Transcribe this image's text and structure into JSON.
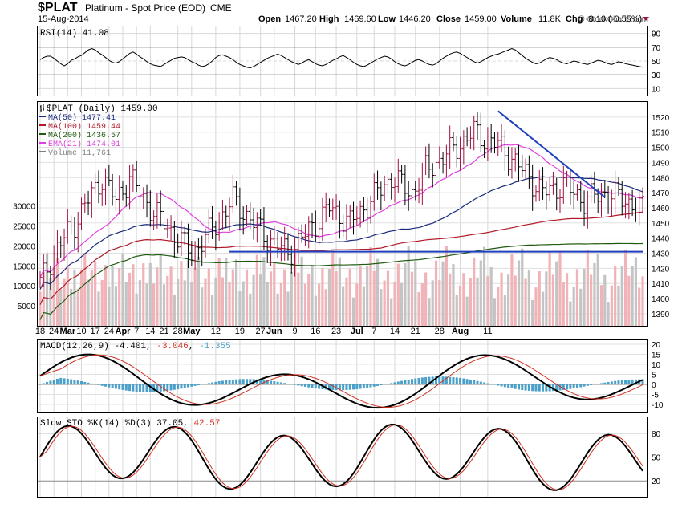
{
  "header": {
    "symbol": "$PLAT",
    "name": "Platinum",
    "desc": "- Spot Price (EOD)",
    "exchange": "CME",
    "date": "15-Aug-2014",
    "open_label": "Open",
    "open": "1467.20",
    "high_label": "High",
    "high": "1469.60",
    "low_label": "Low",
    "low": "1446.20",
    "close_label": "Close",
    "close": "1459.00",
    "volume_label": "Volume",
    "volume": "11.8K",
    "chg_label": "Chg",
    "chg": "-8.10 (-0.55%)",
    "watermark": "@ StockCharts.com"
  },
  "colors": {
    "up": "#a01040",
    "down": "#000000",
    "ma50": "#1a2a7c",
    "ma100": "#b01828",
    "ma200": "#1f5c12",
    "ema21": "#e040e0",
    "trend": "#1f3fbf",
    "vol_up": "#f0b4b8",
    "vol_down": "#c4c4c4",
    "macd_hist": "#4aa0c8",
    "signal": "#d03020"
  },
  "rsi": {
    "label": "RSI(14) 41.08",
    "ticks": [
      "90",
      "70",
      "50",
      "30",
      "10"
    ],
    "values": [
      52,
      55,
      57,
      57,
      54,
      50,
      46,
      43,
      46,
      51,
      53,
      56,
      58,
      62,
      66,
      68,
      66,
      62,
      59,
      55,
      51,
      48,
      47,
      49,
      53,
      57,
      61,
      63,
      60,
      56,
      53,
      49,
      46,
      44,
      43,
      42,
      45,
      48,
      51,
      54,
      55,
      56,
      55,
      52,
      49,
      47,
      44,
      42,
      43,
      46,
      50,
      55,
      58,
      59,
      57,
      55,
      52,
      48,
      45,
      43,
      41,
      40,
      42,
      45,
      48,
      51,
      54,
      56,
      58,
      60,
      58,
      55,
      52,
      49,
      47,
      45,
      47,
      50,
      52,
      49,
      46,
      44,
      43,
      45,
      48,
      51,
      53,
      56,
      58,
      55,
      52,
      48,
      45,
      43,
      42,
      44,
      47,
      50,
      53,
      55,
      57,
      56,
      53,
      49,
      46,
      44,
      43,
      45,
      48,
      51,
      52,
      50,
      47,
      45,
      44,
      46,
      50,
      54,
      57,
      60,
      62,
      63,
      61,
      58,
      55,
      52,
      49,
      47,
      49,
      52,
      55,
      57,
      59,
      60,
      62,
      64,
      66,
      68,
      66,
      62,
      58,
      54,
      51,
      48,
      46,
      47,
      50,
      53,
      55,
      54,
      52,
      49,
      47,
      46,
      48,
      50,
      49,
      47,
      46,
      45,
      47,
      49,
      51,
      50,
      48,
      46,
      45,
      47,
      49,
      48,
      46,
      45,
      44,
      43,
      42,
      41
    ]
  },
  "price": {
    "title": "$PLAT (Daily) 1459.00",
    "legend": [
      {
        "label": "MA(50) 1477.41",
        "color": "#1a2a7c"
      },
      {
        "label": "MA(100) 1459.44",
        "color": "#b01828"
      },
      {
        "label": "MA(200) 1436.57",
        "color": "#1f5c12"
      },
      {
        "label": "EMA(21) 1474.01",
        "color": "#e040e0"
      },
      {
        "label": "Volume 11,761",
        "color": "#808080"
      }
    ],
    "right_ticks": [
      "1520",
      "1510",
      "1500",
      "1490",
      "1480",
      "1470",
      "1460",
      "1450",
      "1440",
      "1430",
      "1420",
      "1410",
      "1400",
      "1390"
    ],
    "vol_ticks": [
      "30000",
      "25000",
      "20000",
      "15000",
      "10000",
      "5000"
    ],
    "x_labels": [
      "18",
      "24",
      "Mar",
      "10",
      "17",
      "24",
      "Apr",
      "7",
      "14",
      "21",
      "28",
      "May",
      "12",
      "19",
      "27",
      "Jun",
      "9",
      "16",
      "23",
      "Jul",
      "7",
      "14",
      "21",
      "28",
      "Aug",
      "11"
    ]
  },
  "macd": {
    "label": "MACD(12,26,9)",
    "macd_val": "-4.401",
    "signal_val": "-3.046",
    "hist_val": "-1.355",
    "ticks": [
      "20",
      "15",
      "10",
      "5",
      "0",
      "-5",
      "-10"
    ]
  },
  "sto": {
    "label": "Slow STO %K(14) %D(3)",
    "k_val": "37.05",
    "d_val": "42.57",
    "ticks": [
      "80",
      "50",
      "20"
    ]
  }
}
